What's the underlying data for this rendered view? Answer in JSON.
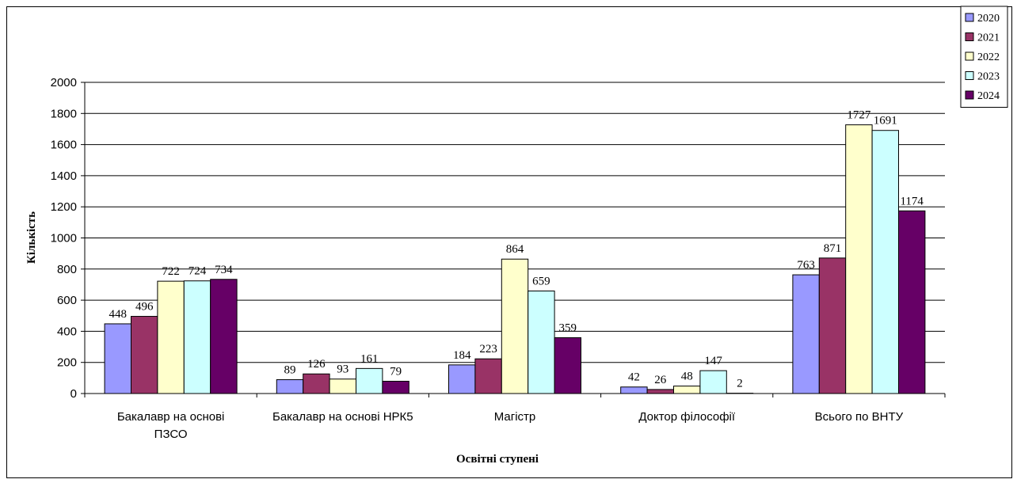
{
  "chart_data": {
    "type": "bar",
    "xlabel": "Освітні ступені",
    "ylabel": "Кількість",
    "ylim": [
      0,
      2000
    ],
    "yticks": [
      0,
      200,
      400,
      600,
      800,
      1000,
      1200,
      1400,
      1600,
      1800,
      2000
    ],
    "grid": true,
    "legend_position": "top-right",
    "categories": [
      [
        "Бакалавр на основі",
        "ПЗСО"
      ],
      [
        "Бакалавр на основі НРК5"
      ],
      [
        "Магістр"
      ],
      [
        "Доктор філософії"
      ],
      [
        "Всього по ВНТУ"
      ]
    ],
    "series": [
      {
        "name": "2020",
        "color": "#9999ff",
        "values": [
          448,
          89,
          184,
          42,
          763
        ]
      },
      {
        "name": "2021",
        "color": "#993366",
        "values": [
          496,
          126,
          223,
          26,
          871
        ]
      },
      {
        "name": "2022",
        "color": "#ffffcc",
        "values": [
          722,
          93,
          864,
          48,
          1727
        ]
      },
      {
        "name": "2023",
        "color": "#ccffff",
        "values": [
          724,
          161,
          659,
          147,
          1691
        ]
      },
      {
        "name": "2024",
        "color": "#660066",
        "values": [
          734,
          79,
          359,
          2,
          1174
        ]
      }
    ]
  }
}
